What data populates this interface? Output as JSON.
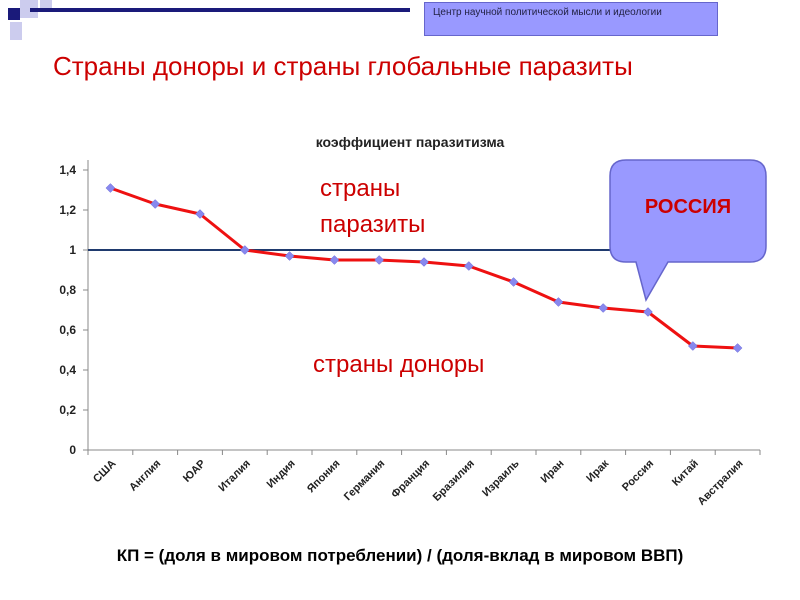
{
  "header": {
    "text": "Центр научной политической мысли и идеологии"
  },
  "slide_title": "Страны доноры и страны глобальные паразиты",
  "formula": "КП = (доля в мировом потреблении) / (доля-вклад в мировом ВВП)",
  "colors": {
    "accent": "#cc0000",
    "line": "#ee1111",
    "marker": "#8888ee",
    "threshold": "#1f3a6e",
    "callout_fill": "#9999ff",
    "callout_stroke": "#6666cc",
    "deco_navy": "#1a1a7a",
    "deco_lavender": "#ccccee"
  },
  "chart_data": {
    "type": "line",
    "title": "коэффициент паразитизма",
    "xlabel": "",
    "ylabel": "",
    "categories": [
      "США",
      "Англия",
      "ЮАР",
      "Италия",
      "Индия",
      "Япония",
      "Германия",
      "Франция",
      "Бразилия",
      "Израиль",
      "Иран",
      "Ирак",
      "Россия",
      "Китай",
      "Австралия"
    ],
    "series": [
      {
        "values": [
          1.31,
          1.23,
          1.18,
          1.0,
          0.97,
          0.95,
          0.95,
          0.94,
          0.92,
          0.84,
          0.74,
          0.71,
          0.69,
          0.52,
          0.51
        ]
      }
    ],
    "ylim": [
      0,
      1.4
    ],
    "yticks": [
      "0",
      "0,2",
      "0,4",
      "0,6",
      "0,8",
      "1",
      "1,2",
      "1,4"
    ],
    "threshold": 1,
    "grid": false,
    "annotations": {
      "parasites_line1": "страны",
      "parasites_line2": "паразиты",
      "donors": "страны доноры",
      "callout": "РОССИЯ"
    }
  }
}
